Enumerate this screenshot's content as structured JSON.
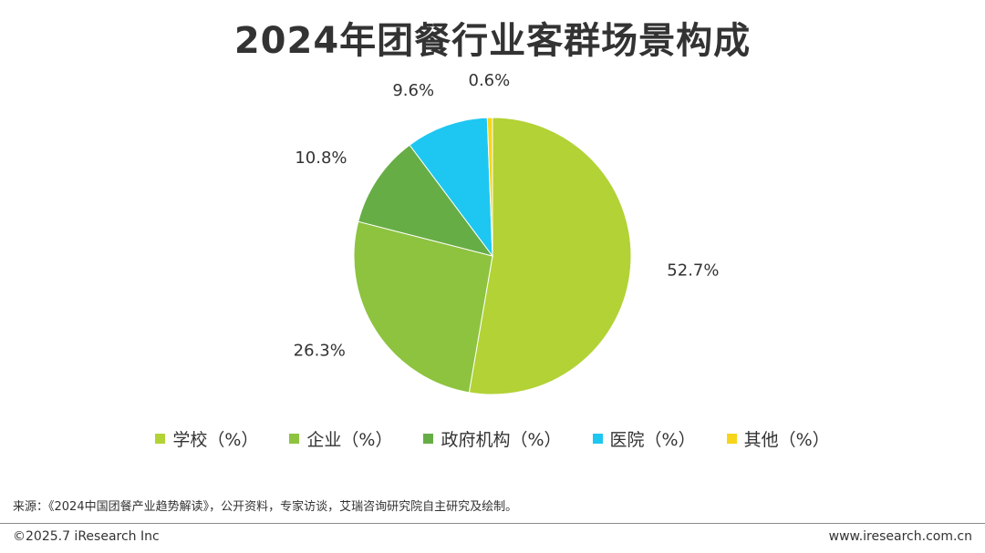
{
  "chart_data": {
    "type": "pie",
    "title": "2024年团餐行业客群场景构成",
    "slices": [
      {
        "label": "学校（%）",
        "value": 52.7,
        "value_label": "52.7%",
        "color": "#b2d235"
      },
      {
        "label": "企业（%）",
        "value": 26.3,
        "value_label": "26.3%",
        "color": "#8dc33f"
      },
      {
        "label": "政府机构（%）",
        "value": 10.8,
        "value_label": "10.8%",
        "color": "#67ad45"
      },
      {
        "label": "医院（%）",
        "value": 9.6,
        "value_label": "9.6%",
        "color": "#1dc7f2"
      },
      {
        "label": "其他（%）",
        "value": 0.6,
        "value_label": "0.6%",
        "color": "#f7d51b"
      }
    ],
    "legend_position": "bottom"
  },
  "footer": {
    "source": "来源：《2024中国团餐产业趋势解读》，公开资料，专家访谈，艾瑞咨询研究院自主研究及绘制。",
    "copyright": "©2025.7 iResearch Inc",
    "website": "www.iresearch.com.cn"
  }
}
